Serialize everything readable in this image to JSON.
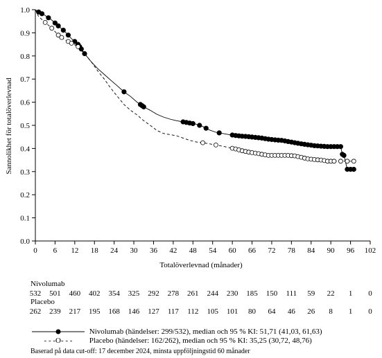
{
  "chart_data": {
    "type": "line",
    "xlabel": "Totalöverlevnad (månader)",
    "ylabel": "Sannolikhet för totalöverlevnad",
    "xlim": [
      0,
      102
    ],
    "ylim": [
      0,
      1
    ],
    "x_ticks": [
      "0",
      "6",
      "12",
      "18",
      "24",
      "30",
      "36",
      "42",
      "48",
      "54",
      "60",
      "66",
      "72",
      "78",
      "84",
      "90",
      "96",
      "102"
    ],
    "y_ticks": [
      "0.0",
      "0.1",
      "0.2",
      "0.3",
      "0.4",
      "0.5",
      "0.6",
      "0.7",
      "0.8",
      "0.9",
      "1.0"
    ],
    "series": [
      {
        "name": "Nivolumab (händelser: 299/532), median och 95 % KI: 51,71 (41,03, 61,63)",
        "style": "solid",
        "marker": "filled-circle",
        "color": "#000000",
        "x": [
          0,
          1,
          3,
          5,
          7,
          9,
          11,
          13,
          15,
          17,
          19,
          21,
          23,
          25,
          27,
          29,
          31,
          33,
          35,
          37,
          39,
          41,
          43,
          45,
          47,
          49,
          51,
          53,
          55,
          57,
          59,
          61,
          63,
          65,
          67,
          69,
          71,
          73,
          75,
          77,
          79,
          81,
          83,
          85,
          87,
          89,
          91,
          93,
          93.5,
          94,
          95,
          96,
          97
        ],
        "y": [
          1.0,
          0.99,
          0.975,
          0.955,
          0.93,
          0.905,
          0.875,
          0.85,
          0.81,
          0.775,
          0.745,
          0.72,
          0.695,
          0.67,
          0.645,
          0.625,
          0.6,
          0.58,
          0.565,
          0.548,
          0.536,
          0.527,
          0.52,
          0.515,
          0.51,
          0.505,
          0.495,
          0.48,
          0.47,
          0.465,
          0.46,
          0.456,
          0.453,
          0.451,
          0.448,
          0.445,
          0.44,
          0.437,
          0.435,
          0.43,
          0.425,
          0.42,
          0.416,
          0.412,
          0.41,
          0.408,
          0.408,
          0.408,
          0.375,
          0.37,
          0.31,
          0.31,
          0.31
        ],
        "censor_x": [
          1,
          2,
          4,
          6,
          7,
          8.5,
          10,
          12,
          13,
          13.5,
          14,
          15,
          27,
          32,
          32.5,
          33,
          45,
          46,
          47,
          48,
          50,
          52,
          56,
          60,
          61,
          62,
          63,
          64,
          65,
          66,
          67,
          68,
          69,
          70,
          71,
          72,
          73,
          74,
          75,
          76,
          77,
          78,
          79,
          80,
          81,
          82,
          83,
          84,
          85,
          86,
          87,
          88,
          89,
          90,
          91,
          92,
          93,
          93.5,
          94,
          95,
          96,
          97
        ]
      },
      {
        "name": "Placebo (händelser: 162/262), median och 95 % KI: 35,25 (30,72, 48,76)",
        "style": "dashed",
        "marker": "open-circle",
        "color": "#000000",
        "x": [
          0,
          1,
          3,
          5,
          7,
          9,
          11,
          13,
          15,
          17,
          19,
          21,
          23,
          25,
          27,
          29,
          31,
          33,
          35,
          37,
          39,
          41,
          43,
          45,
          47,
          49,
          51,
          53,
          55,
          57,
          59,
          61,
          63,
          65,
          67,
          69,
          71,
          73,
          75,
          77,
          79,
          81,
          83,
          85,
          87,
          89,
          91,
          93,
          95,
          97
        ],
        "y": [
          1.0,
          0.97,
          0.945,
          0.92,
          0.89,
          0.87,
          0.855,
          0.84,
          0.81,
          0.775,
          0.735,
          0.7,
          0.66,
          0.625,
          0.59,
          0.565,
          0.545,
          0.52,
          0.5,
          0.478,
          0.465,
          0.46,
          0.455,
          0.445,
          0.435,
          0.428,
          0.425,
          0.42,
          0.415,
          0.41,
          0.404,
          0.398,
          0.39,
          0.384,
          0.38,
          0.375,
          0.37,
          0.37,
          0.37,
          0.37,
          0.368,
          0.362,
          0.355,
          0.352,
          0.35,
          0.345,
          0.345,
          0.345,
          0.345,
          0.345
        ],
        "censor_x": [
          3,
          5,
          7,
          8,
          10,
          11,
          13,
          51,
          55,
          60,
          61,
          62,
          63,
          64,
          65,
          66,
          67,
          68,
          69,
          70,
          71,
          72,
          73,
          74,
          75,
          76,
          77,
          78,
          79,
          80,
          81,
          82,
          83,
          84,
          85,
          86,
          87,
          88,
          89,
          90,
          91,
          93,
          95,
          97
        ]
      }
    ],
    "legend": "bottom",
    "grid": false
  },
  "risk_table": {
    "months": [
      0,
      6,
      12,
      18,
      24,
      30,
      36,
      42,
      48,
      54,
      60,
      66,
      72,
      78,
      84,
      90,
      96,
      102
    ],
    "rows": [
      {
        "label": "Nivolumab",
        "values": [
          "532",
          "501",
          "460",
          "402",
          "354",
          "325",
          "292",
          "278",
          "261",
          "244",
          "230",
          "185",
          "150",
          "111",
          "59",
          "22",
          "1",
          "0"
        ]
      },
      {
        "label": "Placebo",
        "values": [
          "262",
          "239",
          "217",
          "195",
          "168",
          "146",
          "127",
          "117",
          "112",
          "105",
          "101",
          "80",
          "64",
          "46",
          "26",
          "8",
          "1",
          "0"
        ]
      }
    ]
  },
  "legend": {
    "nivolumab": "Nivolumab (händelser: 299/532), median och 95 % KI: 51,71 (41,03, 61,63)",
    "placebo": "Placebo (händelser: 162/262), median och 95 % KI: 35,25 (30,72, 48,76)",
    "placebo_marker_text": "- - -O- - -"
  },
  "footnote": "Baserad på data cut-off: 17 december 2024, minsta uppföljningstid 60 månader"
}
